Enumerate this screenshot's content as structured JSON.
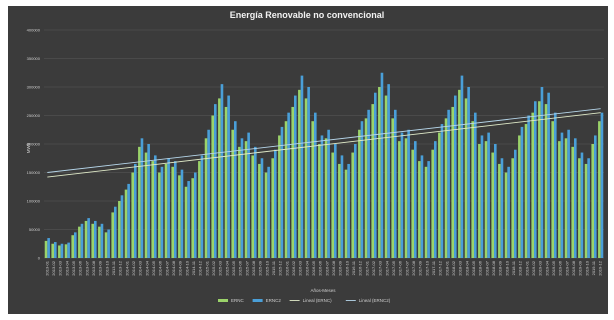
{
  "chart_data": {
    "type": "bar",
    "title": "Energía Renovable no convencional",
    "xlabel": "Años-Meses",
    "ylabel": "MWh",
    "ylim": [
      0,
      400000
    ],
    "yticks": [
      0,
      50000,
      100000,
      150000,
      200000,
      250000,
      300000,
      350000,
      400000
    ],
    "ytick_labels": [
      "0",
      "50000",
      "100000",
      "150000",
      "200000",
      "250000",
      "300000",
      "350000",
      "400000"
    ],
    "grid": true,
    "legend_position": "bottom",
    "categories": [
      "2013-01",
      "2013-02",
      "2013-03",
      "2013-04",
      "2013-05",
      "2013-06",
      "2013-07",
      "2013-08",
      "2013-09",
      "2013-10",
      "2013-11",
      "2013-12",
      "2014-01",
      "2014-02",
      "2014-03",
      "2014-04",
      "2014-05",
      "2014-06",
      "2014-07",
      "2014-08",
      "2014-09",
      "2014-10",
      "2014-11",
      "2014-12",
      "2015-01",
      "2015-02",
      "2015-03",
      "2015-04",
      "2015-05",
      "2015-06",
      "2015-07",
      "2015-08",
      "2015-09",
      "2015-10",
      "2015-11",
      "2015-12",
      "2016-01",
      "2016-02",
      "2016-03",
      "2016-04",
      "2016-05",
      "2016-06",
      "2016-07",
      "2016-08",
      "2016-09",
      "2016-10",
      "2016-11",
      "2016-12",
      "2017-01",
      "2017-02",
      "2017-03",
      "2017-04",
      "2017-05",
      "2017-06",
      "2017-07",
      "2017-08",
      "2017-09",
      "2017-10",
      "2017-11",
      "2017-12",
      "2018-01",
      "2018-02",
      "2018-03",
      "2018-04",
      "2018-05",
      "2018-06",
      "2018-07",
      "2018-08",
      "2018-09",
      "2018-10",
      "2018-11",
      "2018-12",
      "2019-01",
      "2019-02",
      "2019-03",
      "2019-04",
      "2019-05",
      "2019-06",
      "2019-07",
      "2019-08",
      "2019-09",
      "2019-10",
      "2019-11",
      "2019-12"
    ],
    "series": [
      {
        "name": "ERNC",
        "color": "#9bd36a",
        "values": [
          30000,
          25000,
          22000,
          24000,
          40000,
          55000,
          65000,
          60000,
          55000,
          45000,
          80000,
          100000,
          120000,
          150000,
          195000,
          185000,
          170000,
          150000,
          165000,
          160000,
          145000,
          125000,
          140000,
          170000,
          210000,
          250000,
          280000,
          265000,
          225000,
          195000,
          205000,
          180000,
          165000,
          150000,
          175000,
          215000,
          240000,
          265000,
          295000,
          280000,
          240000,
          200000,
          210000,
          185000,
          165000,
          155000,
          185000,
          225000,
          245000,
          270000,
          300000,
          285000,
          245000,
          205000,
          210000,
          190000,
          170000,
          160000,
          190000,
          220000,
          245000,
          265000,
          295000,
          280000,
          240000,
          200000,
          205000,
          185000,
          165000,
          150000,
          175000,
          215000,
          235000,
          255000,
          275000,
          270000,
          240000,
          205000,
          210000,
          195000,
          175000,
          165000,
          200000,
          240000
        ]
      },
      {
        "name": "ERNC2",
        "color": "#4a9fd8",
        "values": [
          35000,
          28000,
          25000,
          27000,
          45000,
          60000,
          70000,
          65000,
          60000,
          50000,
          90000,
          110000,
          130000,
          165000,
          210000,
          200000,
          180000,
          160000,
          175000,
          170000,
          155000,
          135000,
          150000,
          180000,
          225000,
          270000,
          305000,
          285000,
          240000,
          210000,
          220000,
          195000,
          175000,
          160000,
          190000,
          230000,
          255000,
          285000,
          320000,
          300000,
          255000,
          215000,
          225000,
          200000,
          180000,
          165000,
          200000,
          240000,
          260000,
          290000,
          325000,
          305000,
          260000,
          220000,
          225000,
          205000,
          180000,
          170000,
          205000,
          235000,
          260000,
          285000,
          320000,
          300000,
          255000,
          215000,
          220000,
          200000,
          175000,
          160000,
          190000,
          230000,
          250000,
          275000,
          300000,
          290000,
          255000,
          220000,
          225000,
          210000,
          185000,
          175000,
          215000,
          255000
        ]
      }
    ],
    "trendlines": [
      {
        "name": "Lineal (ERNC)",
        "color": "#dfe9c8",
        "from": 142000,
        "to": 255000
      },
      {
        "name": "Lineal (ERNC2)",
        "color": "#b6d6ea",
        "from": 150000,
        "to": 262000
      }
    ]
  }
}
